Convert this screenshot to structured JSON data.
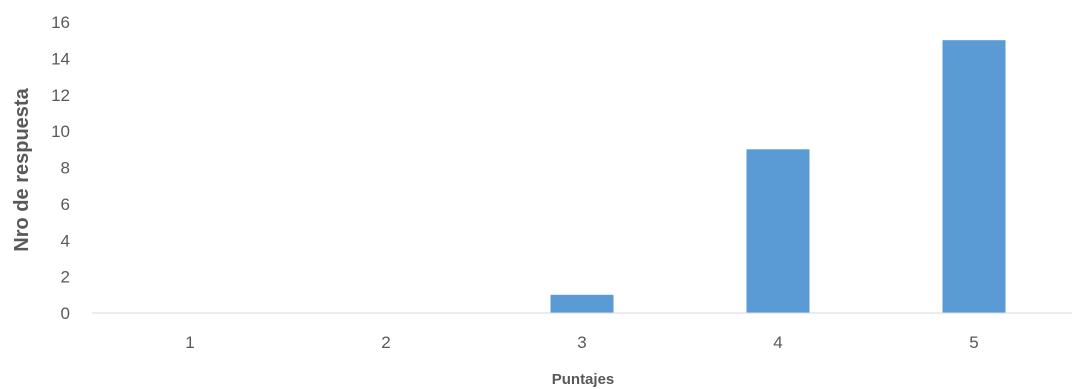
{
  "chart_data": {
    "type": "bar",
    "categories": [
      "1",
      "2",
      "3",
      "4",
      "5"
    ],
    "values": [
      0,
      0,
      1,
      9,
      15
    ],
    "xlabel": "Puntajes",
    "ylabel": "Nro de respuesta",
    "ylim": [
      0,
      16
    ],
    "yticks": [
      "0",
      "2",
      "4",
      "6",
      "8",
      "10",
      "12",
      "14",
      "16"
    ],
    "grid": false,
    "legend": "none",
    "bar_color": "#5b9bd5"
  }
}
